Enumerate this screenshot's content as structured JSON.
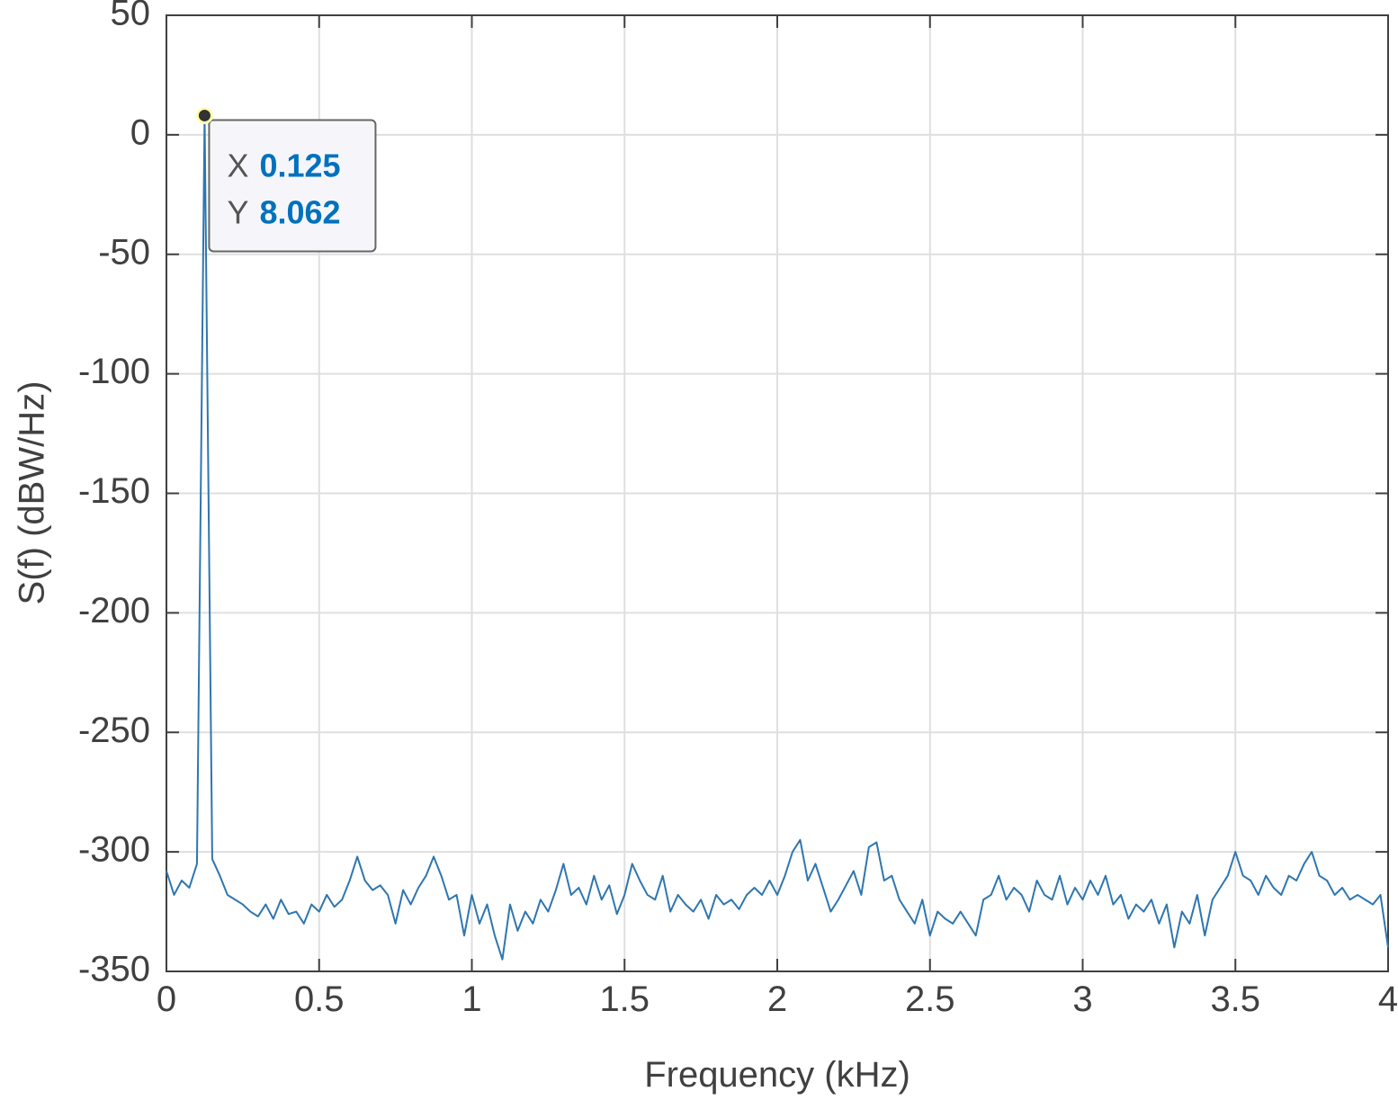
{
  "chart_data": {
    "type": "line",
    "xlabel": "Frequency (kHz)",
    "ylabel": "S(f) (dBW/Hz)",
    "xlim": [
      0,
      4
    ],
    "ylim": [
      -350,
      50
    ],
    "xticks": [
      0,
      0.5,
      1,
      1.5,
      2,
      2.5,
      3,
      3.5,
      4
    ],
    "yticks": [
      -350,
      -300,
      -250,
      -200,
      -150,
      -100,
      -50,
      0,
      50
    ],
    "grid": true,
    "x": [
      0,
      0.025,
      0.05,
      0.075,
      0.1,
      0.125,
      0.15,
      0.175,
      0.2,
      0.225,
      0.25,
      0.275,
      0.3,
      0.325,
      0.35,
      0.375,
      0.4,
      0.425,
      0.45,
      0.475,
      0.5,
      0.525,
      0.55,
      0.575,
      0.6,
      0.625,
      0.65,
      0.675,
      0.7,
      0.725,
      0.75,
      0.775,
      0.8,
      0.825,
      0.85,
      0.875,
      0.9,
      0.925,
      0.95,
      0.975,
      1,
      1.025,
      1.05,
      1.075,
      1.1,
      1.125,
      1.15,
      1.175,
      1.2,
      1.225,
      1.25,
      1.275,
      1.3,
      1.325,
      1.35,
      1.375,
      1.4,
      1.425,
      1.45,
      1.475,
      1.5,
      1.525,
      1.55,
      1.575,
      1.6,
      1.625,
      1.65,
      1.675,
      1.7,
      1.725,
      1.75,
      1.775,
      1.8,
      1.825,
      1.85,
      1.875,
      1.9,
      1.925,
      1.95,
      1.975,
      2,
      2.025,
      2.05,
      2.075,
      2.1,
      2.125,
      2.15,
      2.175,
      2.2,
      2.225,
      2.25,
      2.275,
      2.3,
      2.325,
      2.35,
      2.375,
      2.4,
      2.425,
      2.45,
      2.475,
      2.5,
      2.525,
      2.55,
      2.575,
      2.6,
      2.625,
      2.65,
      2.675,
      2.7,
      2.725,
      2.75,
      2.775,
      2.8,
      2.825,
      2.85,
      2.875,
      2.9,
      2.925,
      2.95,
      2.975,
      3,
      3.025,
      3.05,
      3.075,
      3.1,
      3.125,
      3.15,
      3.175,
      3.2,
      3.225,
      3.25,
      3.275,
      3.3,
      3.325,
      3.35,
      3.375,
      3.4,
      3.425,
      3.45,
      3.475,
      3.5,
      3.525,
      3.55,
      3.575,
      3.6,
      3.625,
      3.65,
      3.675,
      3.7,
      3.725,
      3.75,
      3.775,
      3.8,
      3.825,
      3.85,
      3.875,
      3.9,
      3.925,
      3.95,
      3.975,
      4
    ],
    "series": [
      {
        "color": "#2e76b0",
        "values": [
          -308,
          -318,
          -312,
          -315,
          -305,
          8.062,
          -303,
          -310,
          -318,
          -320,
          -322,
          -325,
          -327,
          -322,
          -328,
          -320,
          -326,
          -325,
          -330,
          -322,
          -325,
          -318,
          -323,
          -320,
          -312,
          -302,
          -312,
          -316,
          -314,
          -318,
          -330,
          -316,
          -322,
          -315,
          -310,
          -302,
          -310,
          -320,
          -318,
          -335,
          -318,
          -330,
          -322,
          -335,
          -345,
          -322,
          -333,
          -325,
          -330,
          -320,
          -325,
          -316,
          -305,
          -318,
          -315,
          -322,
          -310,
          -320,
          -314,
          -326,
          -318,
          -305,
          -312,
          -318,
          -320,
          -310,
          -325,
          -318,
          -322,
          -325,
          -320,
          -328,
          -318,
          -322,
          -320,
          -324,
          -318,
          -315,
          -318,
          -312,
          -318,
          -310,
          -300,
          -295,
          -312,
          -305,
          -315,
          -325,
          -320,
          -314,
          -308,
          -318,
          -298,
          -296,
          -312,
          -310,
          -320,
          -325,
          -330,
          -320,
          -335,
          -325,
          -328,
          -330,
          -325,
          -330,
          -335,
          -320,
          -318,
          -310,
          -320,
          -315,
          -318,
          -325,
          -312,
          -318,
          -320,
          -310,
          -322,
          -315,
          -320,
          -312,
          -318,
          -310,
          -322,
          -318,
          -328,
          -322,
          -325,
          -320,
          -330,
          -322,
          -340,
          -325,
          -330,
          -318,
          -335,
          -320,
          -315,
          -310,
          -300,
          -310,
          -312,
          -318,
          -310,
          -315,
          -318,
          -310,
          -312,
          -305,
          -300,
          -310,
          -312,
          -318,
          -315,
          -320,
          -318,
          -320,
          -322,
          -318,
          -340
        ]
      }
    ],
    "datatip": {
      "x_label": "X",
      "x": 0.125,
      "y_label": "Y",
      "y": 8.062
    }
  }
}
